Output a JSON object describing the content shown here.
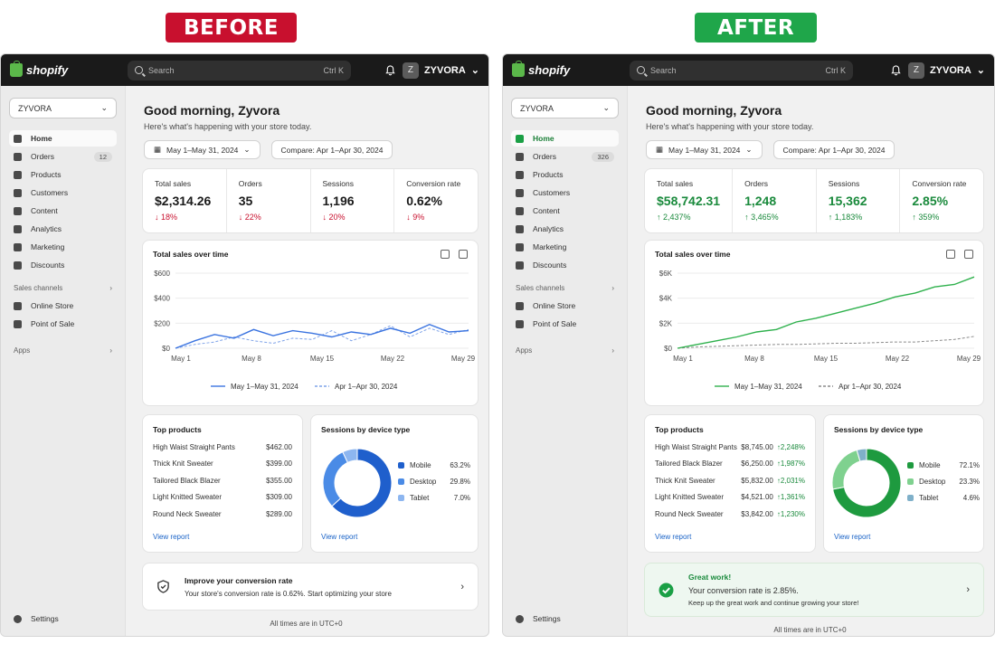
{
  "labels": {
    "before": "BEFORE",
    "after": "AFTER"
  },
  "before": {
    "brand": "shopify",
    "search": {
      "placeholder": "Search",
      "shortcut": "Ctrl K"
    },
    "store": {
      "initial": "Z",
      "name": "ZYVORA"
    },
    "store_select": "ZYVORA",
    "nav": [
      {
        "label": "Home",
        "icon": "home-icon",
        "active": true
      },
      {
        "label": "Orders",
        "icon": "orders-icon",
        "count": "12"
      },
      {
        "label": "Products",
        "icon": "tag-icon"
      },
      {
        "label": "Customers",
        "icon": "person-icon"
      },
      {
        "label": "Content",
        "icon": "content-icon"
      },
      {
        "label": "Analytics",
        "icon": "bar-chart-icon"
      },
      {
        "label": "Marketing",
        "icon": "target-icon"
      },
      {
        "label": "Discounts",
        "icon": "discount-icon"
      }
    ],
    "sales_channels_label": "Sales channels",
    "channels": [
      {
        "label": "Online Store",
        "icon": "store-icon"
      },
      {
        "label": "Point of Sale",
        "icon": "pos-icon"
      }
    ],
    "apps_label": "Apps",
    "settings_label": "Settings",
    "greeting": "Good morning, Zyvora",
    "subgreeting": "Here's what's happening with your store today.",
    "date_range": "May 1–May 31, 2024",
    "compare": "Compare: Apr 1–Apr 30, 2024",
    "metrics": [
      {
        "label": "Total sales",
        "value": "$2,314.26",
        "change": "18%",
        "direction": "down"
      },
      {
        "label": "Orders",
        "value": "35",
        "change": "22%",
        "direction": "down"
      },
      {
        "label": "Sessions",
        "value": "1,196",
        "change": "20%",
        "direction": "down"
      },
      {
        "label": "Conversion rate",
        "value": "0.62%",
        "change": "9%",
        "direction": "down"
      }
    ],
    "chart_title": "Total sales over time",
    "top_products_title": "Top products",
    "products": [
      {
        "name": "High Waist Straight Pants",
        "value": "$462.00"
      },
      {
        "name": "Thick Knit Sweater",
        "value": "$399.00"
      },
      {
        "name": "Tailored Black Blazer",
        "value": "$355.00"
      },
      {
        "name": "Light Knitted Sweater",
        "value": "$309.00"
      },
      {
        "name": "Round Neck Sweater",
        "value": "$289.00"
      }
    ],
    "view_report": "View report",
    "device_title": "Sessions by device type",
    "banner_title": "Improve your conversion rate",
    "banner_text": "Your store's conversion rate is 0.62%. Start optimizing your store",
    "timezone": "All times are in UTC+0"
  },
  "after": {
    "brand": "shopify",
    "search": {
      "placeholder": "Search",
      "shortcut": "Ctrl K"
    },
    "store": {
      "initial": "Z",
      "name": "ZYVORA"
    },
    "store_select": "ZYVORA",
    "nav": [
      {
        "label": "Home",
        "icon": "home-icon",
        "active": true
      },
      {
        "label": "Orders",
        "icon": "orders-icon",
        "count": "326"
      },
      {
        "label": "Products",
        "icon": "tag-icon"
      },
      {
        "label": "Customers",
        "icon": "person-icon"
      },
      {
        "label": "Content",
        "icon": "content-icon"
      },
      {
        "label": "Analytics",
        "icon": "bar-chart-icon"
      },
      {
        "label": "Marketing",
        "icon": "target-icon"
      },
      {
        "label": "Discounts",
        "icon": "discount-icon"
      }
    ],
    "sales_channels_label": "Sales channels",
    "channels": [
      {
        "label": "Online Store",
        "icon": "store-icon"
      },
      {
        "label": "Point of Sale",
        "icon": "pos-icon"
      }
    ],
    "apps_label": "Apps",
    "settings_label": "Settings",
    "greeting": "Good morning, Zyvora",
    "subgreeting": "Here's what's happening with your store today.",
    "date_range": "May 1–May 31, 2024",
    "compare": "Compare: Apr 1–Apr 30, 2024",
    "metrics": [
      {
        "label": "Total sales",
        "value": "$58,742.31",
        "change": "2,437%",
        "direction": "up"
      },
      {
        "label": "Orders",
        "value": "1,248",
        "change": "3,465%",
        "direction": "up"
      },
      {
        "label": "Sessions",
        "value": "15,362",
        "change": "1,183%",
        "direction": "up"
      },
      {
        "label": "Conversion rate",
        "value": "2.85%",
        "change": "359%",
        "direction": "up"
      }
    ],
    "chart_title": "Total sales over time",
    "top_products_title": "Top products",
    "products": [
      {
        "name": "High Waist Straight Pants",
        "value": "$8,745.00",
        "change": "2,248%"
      },
      {
        "name": "Tailored Black Blazer",
        "value": "$6,250.00",
        "change": "1,987%"
      },
      {
        "name": "Thick Knit Sweater",
        "value": "$5,832.00",
        "change": "2,031%"
      },
      {
        "name": "Light Knitted Sweater",
        "value": "$4,521.00",
        "change": "1,361%"
      },
      {
        "name": "Round Neck Sweater",
        "value": "$3,842.00",
        "change": "1,230%"
      }
    ],
    "view_report": "View report",
    "device_title": "Sessions by device type",
    "banner_title": "Great work!",
    "banner_text": "Your conversion rate is 2.85%.",
    "banner_text2": "Keep up the great work and continue growing your store!",
    "timezone": "All times are in UTC+0"
  },
  "chart_data": [
    {
      "type": "line",
      "title": "Total sales over time",
      "x": [
        "May 1",
        "May 3",
        "May 5",
        "May 7",
        "May 9",
        "May 11",
        "May 13",
        "May 15",
        "May 17",
        "May 19",
        "May 21",
        "May 23",
        "May 25",
        "May 27",
        "May 29",
        "May 31"
      ],
      "x_ticks": [
        "May 1",
        "May 8",
        "May 15",
        "May 22",
        "May 29"
      ],
      "y_ticks": [
        "$0",
        "$200",
        "$400",
        "$600"
      ],
      "ylim": [
        0,
        600
      ],
      "series": [
        {
          "name": "May 1–May 31, 2024",
          "color": "#3b74e0",
          "style": "solid",
          "values": [
            0,
            60,
            110,
            80,
            150,
            100,
            140,
            120,
            90,
            130,
            110,
            160,
            120,
            190,
            130,
            140
          ]
        },
        {
          "name": "Apr 1–Apr 30, 2024",
          "color": "#7fa3e8",
          "style": "dashed",
          "values": [
            0,
            30,
            50,
            90,
            60,
            40,
            80,
            70,
            140,
            60,
            110,
            180,
            90,
            160,
            110,
            150
          ]
        }
      ],
      "legend": "bottom"
    },
    {
      "type": "line",
      "title": "Total sales over time",
      "x": [
        "May 1",
        "May 3",
        "May 5",
        "May 7",
        "May 9",
        "May 11",
        "May 13",
        "May 15",
        "May 17",
        "May 19",
        "May 21",
        "May 23",
        "May 25",
        "May 27",
        "May 29",
        "May 31"
      ],
      "x_ticks": [
        "May 1",
        "May 8",
        "May 15",
        "May 22",
        "May 29"
      ],
      "y_ticks": [
        "$0",
        "$2K",
        "$4K",
        "$6K"
      ],
      "ylim": [
        0,
        6000
      ],
      "series": [
        {
          "name": "May 1–May 31, 2024",
          "color": "#2fb14d",
          "style": "solid",
          "values": [
            0,
            300,
            600,
            900,
            1300,
            1500,
            2100,
            2400,
            2800,
            3200,
            3600,
            4100,
            4400,
            4900,
            5100,
            5700
          ]
        },
        {
          "name": "Apr 1–Apr 30, 2024",
          "color": "#8a8a8a",
          "style": "dashed",
          "values": [
            0,
            100,
            150,
            200,
            250,
            300,
            300,
            350,
            400,
            400,
            450,
            500,
            500,
            600,
            700,
            950
          ]
        }
      ],
      "legend": "bottom"
    },
    {
      "type": "pie",
      "title": "Sessions by device type",
      "labels": [
        "Mobile",
        "Desktop",
        "Tablet"
      ],
      "values": [
        63.2,
        29.8,
        7.0
      ],
      "display": [
        "63.2%",
        "29.8%",
        "7.0%"
      ],
      "colors": [
        "#1f5fcc",
        "#4a8be6",
        "#8db6f0"
      ]
    },
    {
      "type": "pie",
      "title": "Sessions by device type",
      "labels": [
        "Mobile",
        "Desktop",
        "Tablet"
      ],
      "values": [
        72.1,
        23.3,
        4.6
      ],
      "display": [
        "72.1%",
        "23.3%",
        "4.6%"
      ],
      "colors": [
        "#1e9a3f",
        "#7fd18f",
        "#7fb0c9"
      ]
    }
  ]
}
